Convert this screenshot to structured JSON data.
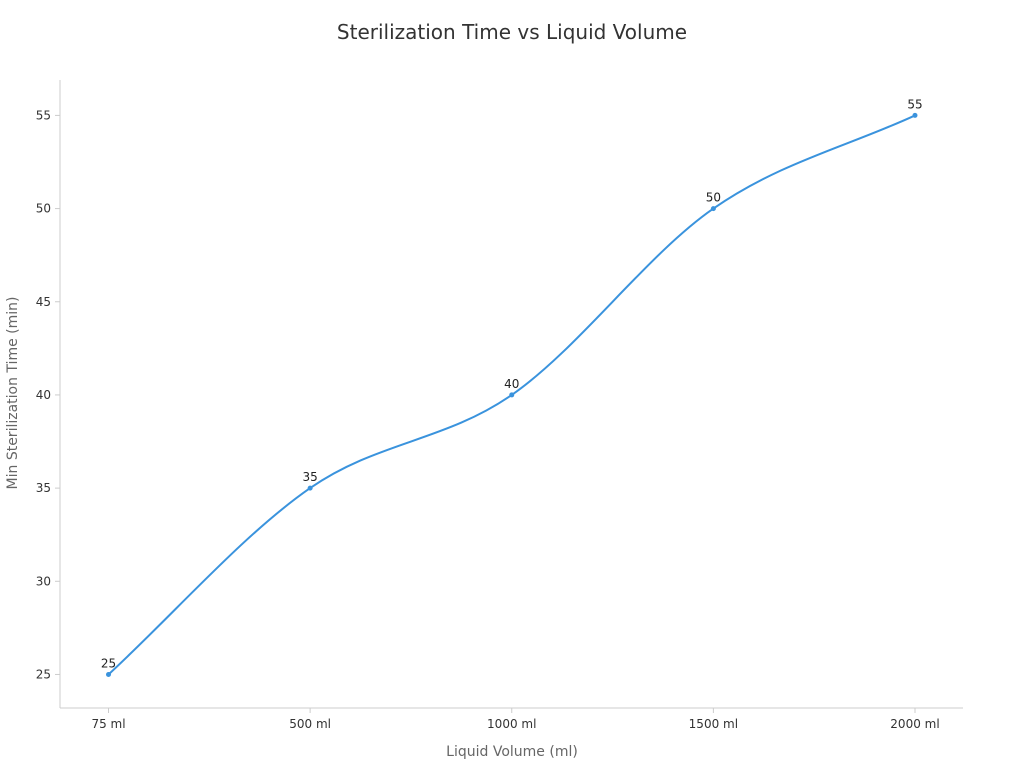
{
  "chart_data": {
    "type": "line",
    "title": "Sterilization Time vs Liquid Volume",
    "xlabel": "Liquid Volume (ml)",
    "ylabel": "Min Sterilization Time (min)",
    "categories": [
      "75 ml",
      "500 ml",
      "1000 ml",
      "1500 ml",
      "2000 ml"
    ],
    "series": [
      {
        "values": [
          25,
          35,
          40,
          50,
          55
        ],
        "color": "#3a93dd"
      }
    ],
    "y_ticks": [
      25,
      30,
      35,
      40,
      45,
      50,
      55
    ],
    "ylim": [
      23.2,
      56.9
    ],
    "smooth": true,
    "grid": false,
    "legend": "none",
    "show_data_labels": true,
    "axis_color": "#cccccc"
  }
}
